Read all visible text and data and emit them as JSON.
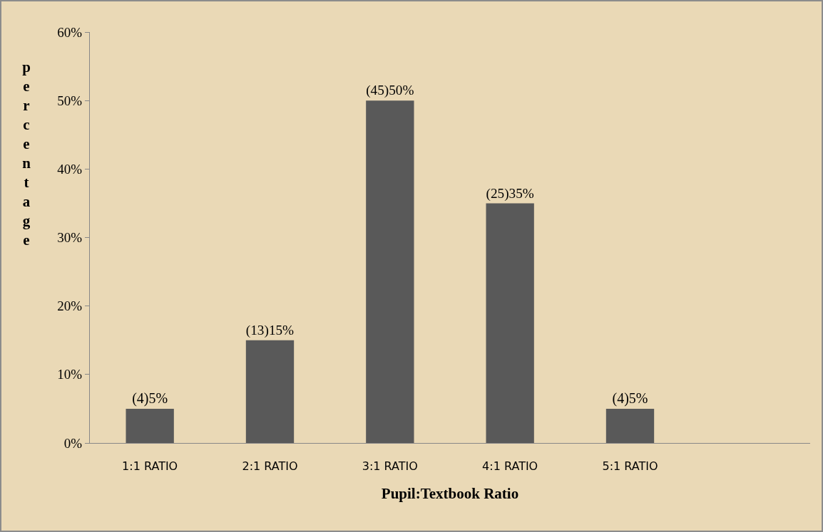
{
  "chart_data": {
    "type": "bar",
    "xlabel": "Pupil:Textbook Ratio",
    "ylabel": "percentage",
    "categories": [
      "1:1 RATIO",
      "2:1 RATIO",
      "3:1 RATIO",
      "4:1 RATIO",
      "5:1 RATIO",
      null
    ],
    "values": [
      5,
      15,
      50,
      35,
      5,
      null
    ],
    "value_labels": [
      "(4)5%",
      "(13)15%",
      "(45)50%",
      "(25)35%",
      "(4)5%",
      null
    ],
    "color": "#595959",
    "ylim": [
      0,
      60
    ],
    "yticks": [
      {
        "value": 0,
        "label": "0%"
      },
      {
        "value": 10,
        "label": "10%"
      },
      {
        "value": 20,
        "label": "20%"
      },
      {
        "value": 30,
        "label": "30%"
      },
      {
        "value": 40,
        "label": "40%"
      },
      {
        "value": 50,
        "label": "50%"
      },
      {
        "value": 60,
        "label": "60%"
      }
    ],
    "grid": false
  }
}
